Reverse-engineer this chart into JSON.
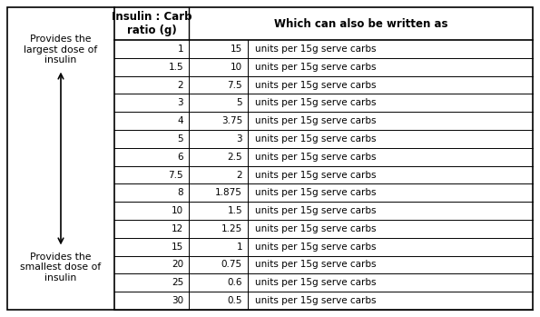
{
  "col1_header": "Insulin : Carb\nratio (g)",
  "col2_header": "Which can also be written as",
  "rows": [
    [
      "1",
      "15",
      "units per 15g serve carbs"
    ],
    [
      "1.5",
      "10",
      "units per 15g serve carbs"
    ],
    [
      "2",
      "7.5",
      "units per 15g serve carbs"
    ],
    [
      "3",
      "5",
      "units per 15g serve carbs"
    ],
    [
      "4",
      "3.75",
      "units per 15g serve carbs"
    ],
    [
      "5",
      "3",
      "units per 15g serve carbs"
    ],
    [
      "6",
      "2.5",
      "units per 15g serve carbs"
    ],
    [
      "7.5",
      "2",
      "units per 15g serve carbs"
    ],
    [
      "8",
      "1.875",
      "units per 15g serve carbs"
    ],
    [
      "10",
      "1.5",
      "units per 15g serve carbs"
    ],
    [
      "12",
      "1.25",
      "units per 15g serve carbs"
    ],
    [
      "15",
      "1",
      "units per 15g serve carbs"
    ],
    [
      "20",
      "0.75",
      "units per 15g serve carbs"
    ],
    [
      "25",
      "0.6",
      "units per 15g serve carbs"
    ],
    [
      "30",
      "0.5",
      "units per 15g serve carbs"
    ]
  ],
  "left_top_text": "Provides the\nlargest dose of\ninsulin",
  "left_bottom_text": "Provides the\nsmallest dose of\ninsulin",
  "bg_color": "#ffffff",
  "border_color": "#000000",
  "font_size": 7.5,
  "header_font_size": 8.5
}
